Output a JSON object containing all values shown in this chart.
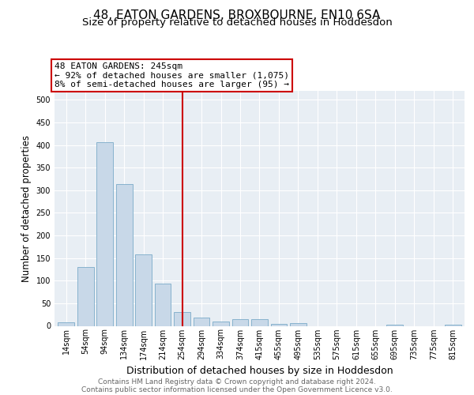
{
  "title": "48, EATON GARDENS, BROXBOURNE, EN10 6SA",
  "subtitle": "Size of property relative to detached houses in Hoddesdon",
  "xlabel": "Distribution of detached houses by size in Hoddesdon",
  "ylabel": "Number of detached properties",
  "bar_color": "#c8d8e8",
  "bar_edge_color": "#7aaac8",
  "background_color": "#e8eef4",
  "grid_color": "#ffffff",
  "categories": [
    "14sqm",
    "54sqm",
    "94sqm",
    "134sqm",
    "174sqm",
    "214sqm",
    "254sqm",
    "294sqm",
    "334sqm",
    "374sqm",
    "415sqm",
    "455sqm",
    "495sqm",
    "535sqm",
    "575sqm",
    "615sqm",
    "655sqm",
    "695sqm",
    "735sqm",
    "775sqm",
    "815sqm"
  ],
  "values": [
    7,
    130,
    407,
    313,
    158,
    93,
    30,
    19,
    9,
    15,
    15,
    5,
    6,
    0,
    0,
    0,
    0,
    3,
    0,
    0,
    3
  ],
  "vline_x": 6,
  "vline_color": "#cc0000",
  "annotation_line1": "48 EATON GARDENS: 245sqm",
  "annotation_line2": "← 92% of detached houses are smaller (1,075)",
  "annotation_line3": "8% of semi-detached houses are larger (95) →",
  "annotation_box_color": "#cc0000",
  "ylim": [
    0,
    520
  ],
  "yticks": [
    0,
    50,
    100,
    150,
    200,
    250,
    300,
    350,
    400,
    450,
    500
  ],
  "footer_line1": "Contains HM Land Registry data © Crown copyright and database right 2024.",
  "footer_line2": "Contains public sector information licensed under the Open Government Licence v3.0.",
  "title_fontsize": 11,
  "subtitle_fontsize": 9.5,
  "xlabel_fontsize": 9,
  "ylabel_fontsize": 8.5,
  "tick_fontsize": 7,
  "annotation_fontsize": 8,
  "footer_fontsize": 6.5
}
